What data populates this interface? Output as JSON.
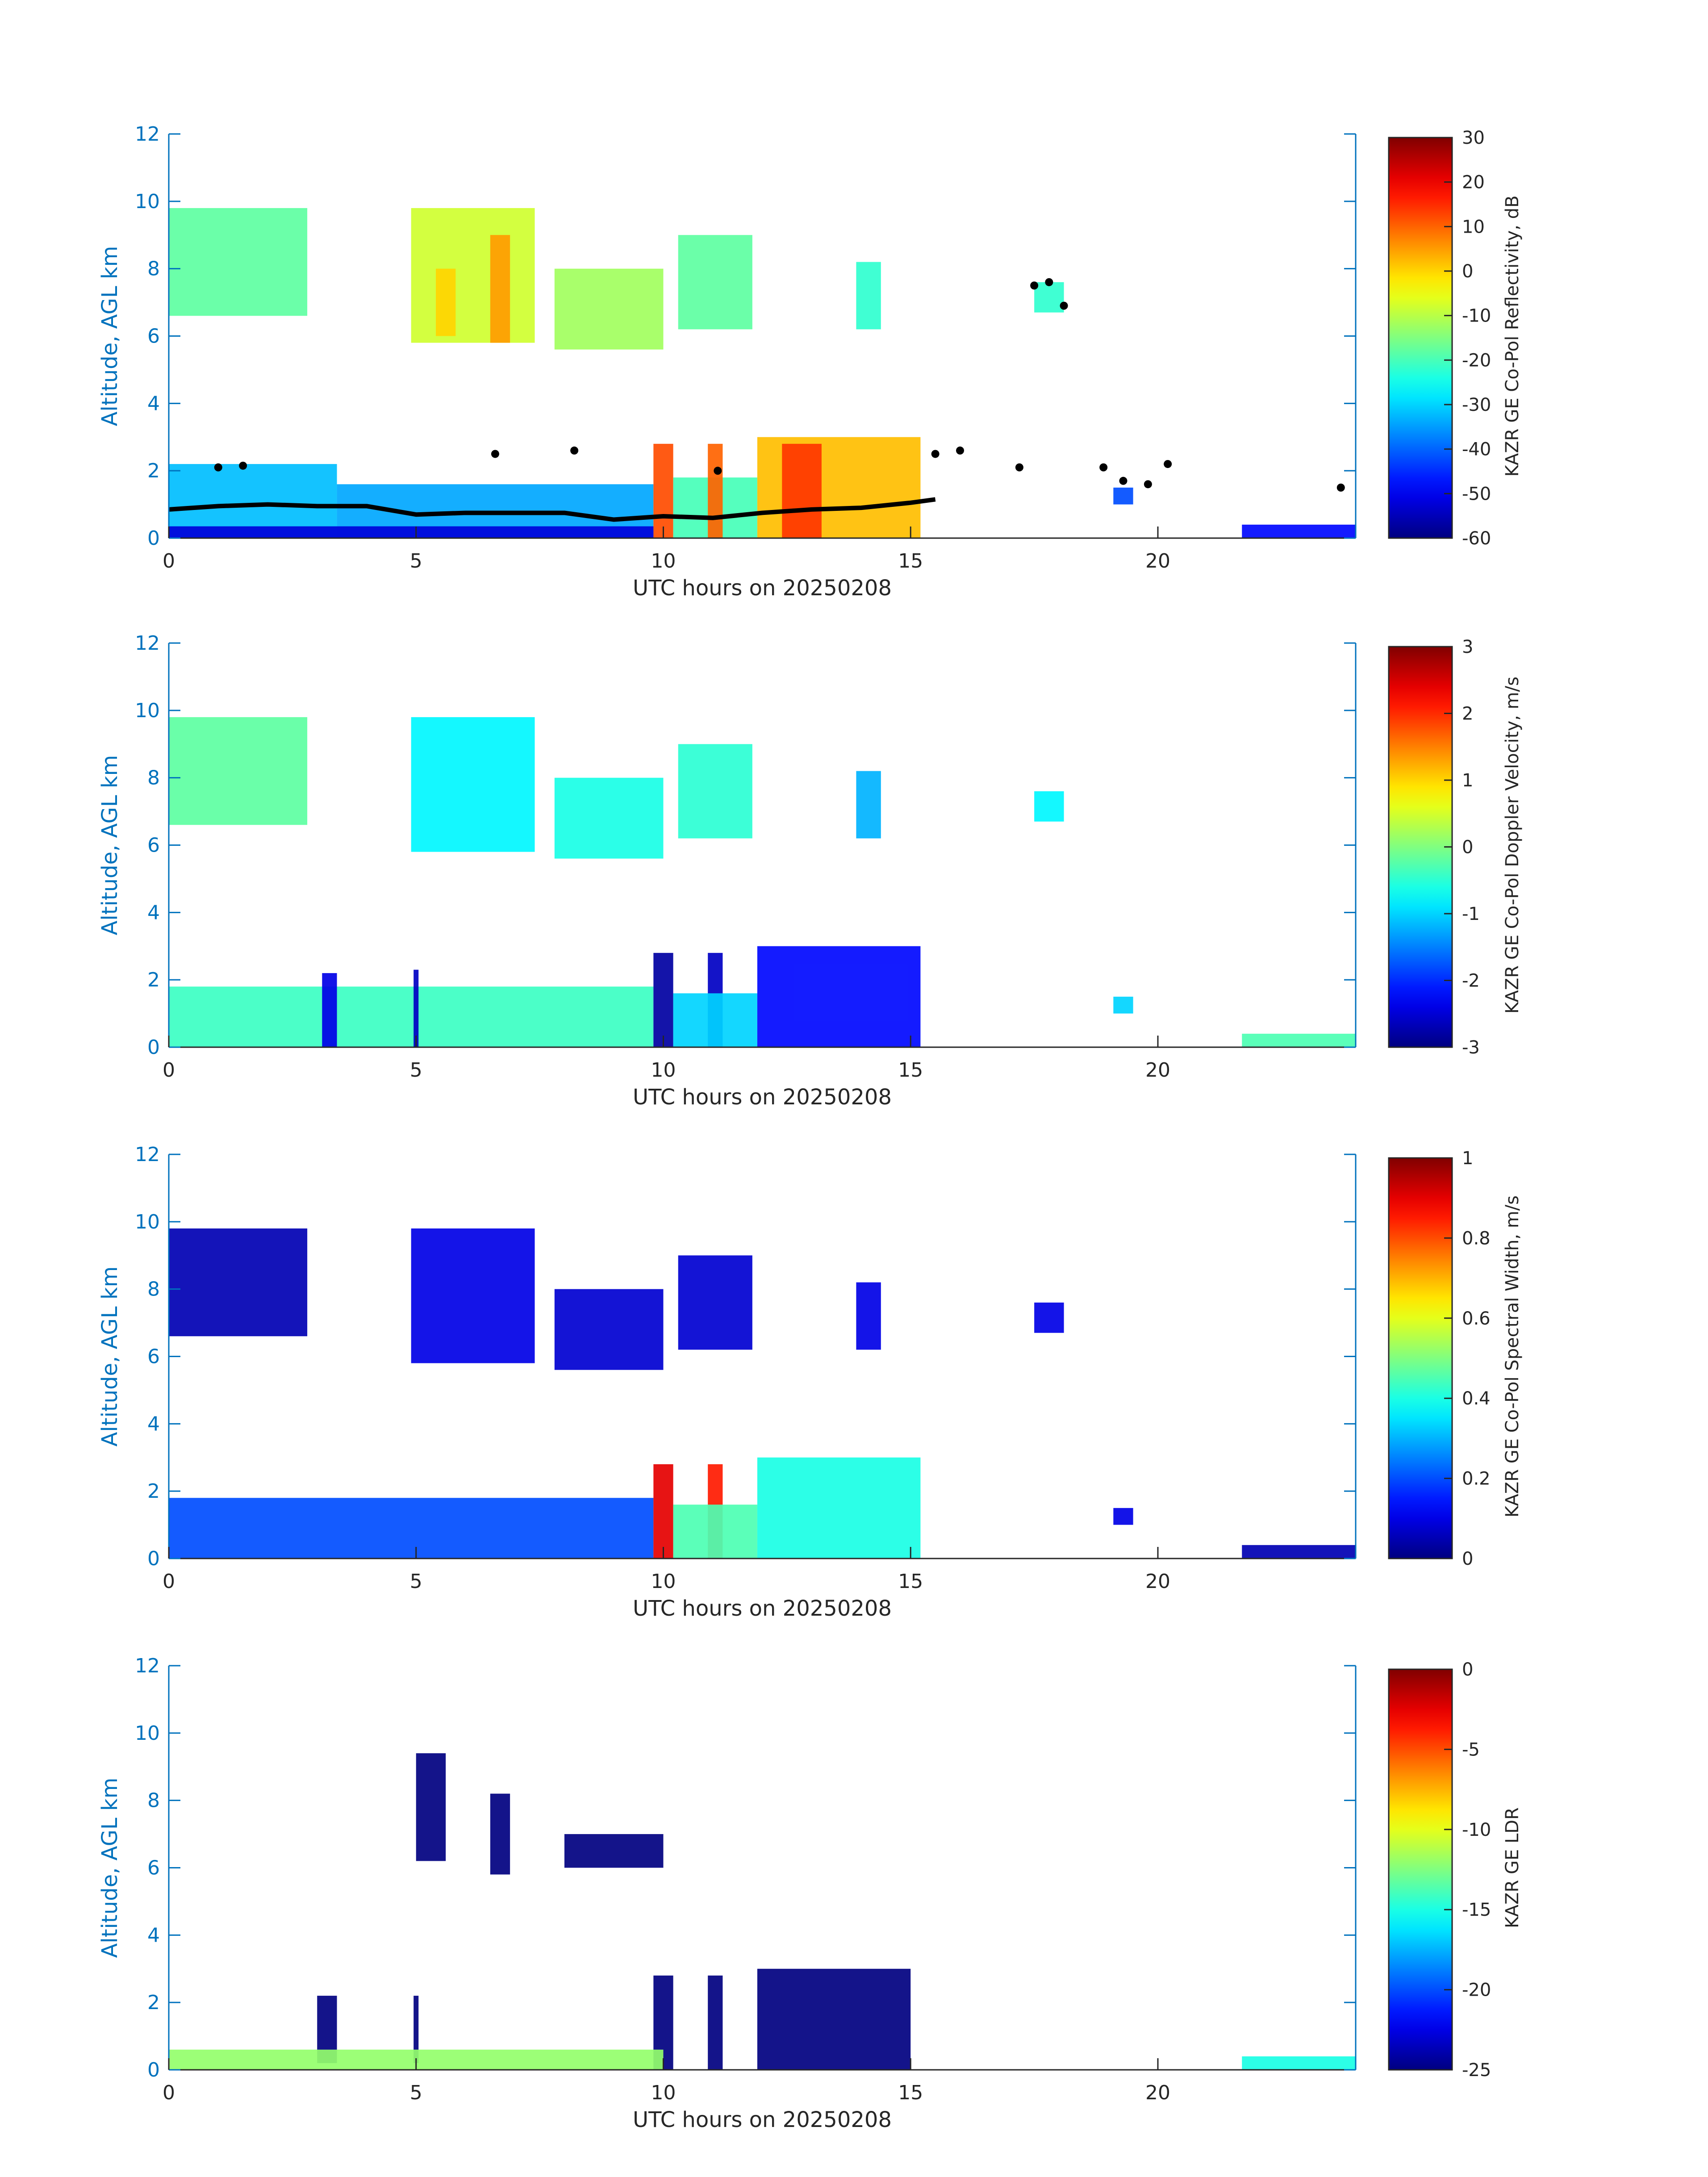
{
  "figure": {
    "colormap": "jet",
    "axis_color": "#0072bd",
    "text_color": "#262626"
  },
  "chart_data": [
    {
      "type": "heatmap",
      "xlabel": "UTC hours on 20250208",
      "ylabel": "Altitude, AGL km",
      "xlim": [
        0,
        24
      ],
      "ylim": [
        0,
        12
      ],
      "xticks": [
        "0",
        "5",
        "10",
        "15",
        "20"
      ],
      "yticks": [
        "0",
        "2",
        "4",
        "6",
        "8",
        "10",
        "12"
      ],
      "colorbar": {
        "label": "KAZR GE Co-Pol Reflectivity, dB",
        "min": -60,
        "max": 30,
        "ticks": [
          "30",
          "20",
          "10",
          "0",
          "-10",
          "-20",
          "-30",
          "-40",
          "-50",
          "-60"
        ]
      },
      "cells": [
        {
          "t0": 0.0,
          "t1": 2.8,
          "z0": 6.6,
          "z1": 9.8,
          "v": -18
        },
        {
          "t0": 4.9,
          "t1": 7.4,
          "z0": 5.8,
          "z1": 9.8,
          "v": -8
        },
        {
          "t0": 6.5,
          "t1": 6.9,
          "z0": 5.8,
          "z1": 9.0,
          "v": 5
        },
        {
          "t0": 5.4,
          "t1": 5.8,
          "z0": 6.0,
          "z1": 8.0,
          "v": 0
        },
        {
          "t0": 7.8,
          "t1": 10.0,
          "z0": 5.6,
          "z1": 8.0,
          "v": -12
        },
        {
          "t0": 10.3,
          "t1": 11.8,
          "z0": 6.2,
          "z1": 9.0,
          "v": -18
        },
        {
          "t0": 13.9,
          "t1": 14.4,
          "z0": 6.2,
          "z1": 8.2,
          "v": -22
        },
        {
          "t0": 17.5,
          "t1": 18.1,
          "z0": 6.7,
          "z1": 7.6,
          "v": -22
        },
        {
          "t0": 0.0,
          "t1": 3.4,
          "z0": 0.0,
          "z1": 2.2,
          "v": -32
        },
        {
          "t0": 3.4,
          "t1": 9.8,
          "z0": 0.0,
          "z1": 1.6,
          "v": -34
        },
        {
          "t0": 9.8,
          "t1": 10.2,
          "z0": 0.0,
          "z1": 2.8,
          "v": 12
        },
        {
          "t0": 10.2,
          "t1": 11.9,
          "z0": 0.0,
          "z1": 1.8,
          "v": -20
        },
        {
          "t0": 10.9,
          "t1": 11.2,
          "z0": 0.0,
          "z1": 2.8,
          "v": 10
        },
        {
          "t0": 11.9,
          "t1": 15.2,
          "z0": 0.0,
          "z1": 3.0,
          "v": 2
        },
        {
          "t0": 12.4,
          "t1": 13.2,
          "z0": 0.0,
          "z1": 2.8,
          "v": 14
        },
        {
          "t0": 19.1,
          "t1": 19.5,
          "z0": 1.0,
          "z1": 1.5,
          "v": -42
        },
        {
          "t0": 21.7,
          "t1": 24.0,
          "z0": 0.0,
          "z1": 0.4,
          "v": -48
        },
        {
          "t0": 0.0,
          "t1": 9.8,
          "z0": 0.0,
          "z1": 0.35,
          "v": -52
        }
      ],
      "cloud_base": {
        "t": [
          0,
          1,
          2,
          3,
          4,
          5,
          6,
          7,
          8,
          9,
          10,
          11,
          12,
          13,
          14,
          15,
          15.5
        ],
        "z": [
          0.85,
          0.95,
          1.0,
          0.95,
          0.95,
          0.7,
          0.75,
          0.75,
          0.75,
          0.55,
          0.65,
          0.6,
          0.75,
          0.85,
          0.9,
          1.05,
          1.15
        ]
      },
      "cloud_base_points": [
        {
          "t": 1.0,
          "z": 2.1
        },
        {
          "t": 1.5,
          "z": 2.15
        },
        {
          "t": 6.6,
          "z": 2.5
        },
        {
          "t": 8.2,
          "z": 2.6
        },
        {
          "t": 11.1,
          "z": 2.0
        },
        {
          "t": 15.5,
          "z": 2.5
        },
        {
          "t": 16.0,
          "z": 2.6
        },
        {
          "t": 17.2,
          "z": 2.1
        },
        {
          "t": 17.5,
          "z": 7.5
        },
        {
          "t": 17.8,
          "z": 7.6
        },
        {
          "t": 18.1,
          "z": 6.9
        },
        {
          "t": 18.9,
          "z": 2.1
        },
        {
          "t": 19.3,
          "z": 1.7
        },
        {
          "t": 19.8,
          "z": 1.6
        },
        {
          "t": 20.2,
          "z": 2.2
        },
        {
          "t": 23.7,
          "z": 1.5
        }
      ]
    },
    {
      "type": "heatmap",
      "xlabel": "UTC hours on 20250208",
      "ylabel": "Altitude, AGL km",
      "xlim": [
        0,
        24
      ],
      "ylim": [
        0,
        12
      ],
      "xticks": [
        "0",
        "5",
        "10",
        "15",
        "20"
      ],
      "yticks": [
        "0",
        "2",
        "4",
        "6",
        "8",
        "10",
        "12"
      ],
      "colorbar": {
        "label": "KAZR GE Co-Pol Doppler Velocity, m/s",
        "min": -3,
        "max": 3,
        "ticks": [
          "3",
          "2",
          "1",
          "0",
          "-1",
          "-2",
          "-3"
        ]
      },
      "cells": [
        {
          "t0": 0.0,
          "t1": 2.8,
          "z0": 6.6,
          "z1": 9.8,
          "v": -0.2
        },
        {
          "t0": 4.9,
          "t1": 7.4,
          "z0": 5.8,
          "z1": 9.8,
          "v": -0.8
        },
        {
          "t0": 7.8,
          "t1": 10.0,
          "z0": 5.6,
          "z1": 8.0,
          "v": -0.6
        },
        {
          "t0": 10.3,
          "t1": 11.8,
          "z0": 6.2,
          "z1": 9.0,
          "v": -0.5
        },
        {
          "t0": 13.9,
          "t1": 14.4,
          "z0": 6.2,
          "z1": 8.2,
          "v": -1.2
        },
        {
          "t0": 17.5,
          "t1": 18.1,
          "z0": 6.7,
          "z1": 7.6,
          "v": -0.8
        },
        {
          "t0": 0.0,
          "t1": 9.8,
          "z0": 0.0,
          "z1": 1.8,
          "v": -0.4
        },
        {
          "t0": 3.1,
          "t1": 3.4,
          "z0": 0.0,
          "z1": 2.2,
          "v": -2.4
        },
        {
          "t0": 4.95,
          "t1": 5.05,
          "z0": 0.0,
          "z1": 2.3,
          "v": -2.6
        },
        {
          "t0": 9.8,
          "t1": 10.2,
          "z0": 0.0,
          "z1": 2.8,
          "v": -2.8
        },
        {
          "t0": 10.9,
          "t1": 11.2,
          "z0": 0.0,
          "z1": 2.8,
          "v": -2.6
        },
        {
          "t0": 10.2,
          "t1": 11.9,
          "z0": 0.0,
          "z1": 1.6,
          "v": -1.0
        },
        {
          "t0": 11.9,
          "t1": 15.2,
          "z0": 0.0,
          "z1": 3.0,
          "v": -2.2
        },
        {
          "t0": 19.1,
          "t1": 19.5,
          "z0": 1.0,
          "z1": 1.5,
          "v": -1.0
        },
        {
          "t0": 21.7,
          "t1": 24.0,
          "z0": 0.0,
          "z1": 0.4,
          "v": -0.3
        }
      ]
    },
    {
      "type": "heatmap",
      "xlabel": "UTC hours on 20250208",
      "ylabel": "Altitude, AGL km",
      "xlim": [
        0,
        24
      ],
      "ylim": [
        0,
        12
      ],
      "xticks": [
        "0",
        "5",
        "10",
        "15",
        "20"
      ],
      "yticks": [
        "0",
        "2",
        "4",
        "6",
        "8",
        "10",
        "12"
      ],
      "colorbar": {
        "label": "KAZR GE Co-Pol Spectral Width, m/s",
        "min": 0,
        "max": 1,
        "ticks": [
          "1",
          "0.8",
          "0.6",
          "0.4",
          "0.2",
          "0"
        ]
      },
      "cells": [
        {
          "t0": 0.0,
          "t1": 2.8,
          "z0": 6.6,
          "z1": 9.8,
          "v": 0.05
        },
        {
          "t0": 4.9,
          "t1": 7.4,
          "z0": 5.8,
          "z1": 9.8,
          "v": 0.1
        },
        {
          "t0": 7.8,
          "t1": 10.0,
          "z0": 5.6,
          "z1": 8.0,
          "v": 0.08
        },
        {
          "t0": 10.3,
          "t1": 11.8,
          "z0": 6.2,
          "z1": 9.0,
          "v": 0.08
        },
        {
          "t0": 13.9,
          "t1": 14.4,
          "z0": 6.2,
          "z1": 8.2,
          "v": 0.1
        },
        {
          "t0": 17.5,
          "t1": 18.1,
          "z0": 6.7,
          "z1": 7.6,
          "v": 0.1
        },
        {
          "t0": 0.0,
          "t1": 9.8,
          "z0": 0.0,
          "z1": 1.8,
          "v": 0.2
        },
        {
          "t0": 9.8,
          "t1": 10.2,
          "z0": 0.0,
          "z1": 2.8,
          "v": 0.9
        },
        {
          "t0": 10.9,
          "t1": 11.2,
          "z0": 0.0,
          "z1": 2.8,
          "v": 0.85
        },
        {
          "t0": 10.2,
          "t1": 11.9,
          "z0": 0.0,
          "z1": 1.6,
          "v": 0.45
        },
        {
          "t0": 11.9,
          "t1": 15.2,
          "z0": 0.0,
          "z1": 3.0,
          "v": 0.4
        },
        {
          "t0": 19.1,
          "t1": 19.5,
          "z0": 1.0,
          "z1": 1.5,
          "v": 0.1
        },
        {
          "t0": 21.7,
          "t1": 24.0,
          "z0": 0.0,
          "z1": 0.4,
          "v": 0.05
        }
      ]
    },
    {
      "type": "heatmap",
      "xlabel": "UTC hours on 20250208",
      "ylabel": "Altitude, AGL km",
      "xlim": [
        0,
        24
      ],
      "ylim": [
        0,
        12
      ],
      "xticks": [
        "0",
        "5",
        "10",
        "15",
        "20"
      ],
      "yticks": [
        "0",
        "2",
        "4",
        "6",
        "8",
        "10",
        "12"
      ],
      "colorbar": {
        "label": "KAZR GE LDR",
        "min": -25,
        "max": 0,
        "ticks": [
          "0",
          "-5",
          "-10",
          "-15",
          "-20",
          "-25"
        ]
      },
      "cells": [
        {
          "t0": 5.0,
          "t1": 5.6,
          "z0": 6.2,
          "z1": 9.4,
          "v": -25
        },
        {
          "t0": 6.5,
          "t1": 6.9,
          "z0": 5.8,
          "z1": 8.2,
          "v": -25
        },
        {
          "t0": 8.0,
          "t1": 10.0,
          "z0": 6.0,
          "z1": 7.0,
          "v": -25
        },
        {
          "t0": 3.0,
          "t1": 3.4,
          "z0": 0.2,
          "z1": 2.2,
          "v": -25
        },
        {
          "t0": 4.95,
          "t1": 5.05,
          "z0": 0.2,
          "z1": 2.2,
          "v": -25
        },
        {
          "t0": 9.8,
          "t1": 10.2,
          "z0": 0.0,
          "z1": 2.8,
          "v": -25
        },
        {
          "t0": 10.9,
          "t1": 11.2,
          "z0": 0.0,
          "z1": 2.8,
          "v": -25
        },
        {
          "t0": 11.9,
          "t1": 15.0,
          "z0": 0.0,
          "z1": 3.0,
          "v": -25
        },
        {
          "t0": 0.0,
          "t1": 10.0,
          "z0": 0.0,
          "z1": 0.6,
          "v": -12
        },
        {
          "t0": 21.7,
          "t1": 24.0,
          "z0": 0.0,
          "z1": 0.4,
          "v": -15
        }
      ]
    }
  ]
}
